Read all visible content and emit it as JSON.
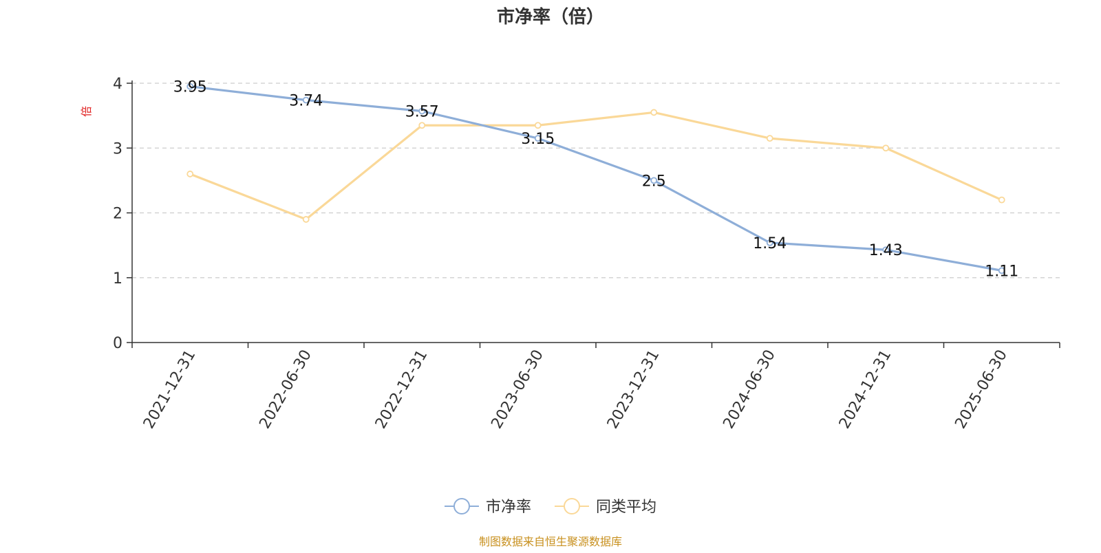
{
  "chart_data": {
    "type": "line",
    "title": "市净率（倍）",
    "ylabel": "倍",
    "ylim": [
      0,
      4
    ],
    "yticks": [
      0,
      1,
      2,
      3,
      4
    ],
    "grid": true,
    "legend_position": "bottom",
    "categories": [
      "2021-12-31",
      "2022-06-30",
      "2022-12-31",
      "2023-06-30",
      "2023-12-31",
      "2024-06-30",
      "2024-12-31",
      "2025-06-30"
    ],
    "series": [
      {
        "name": "市净率",
        "color": "#8eaed8",
        "values": [
          3.95,
          3.74,
          3.57,
          3.15,
          2.5,
          1.54,
          1.43,
          1.11
        ],
        "labels": [
          "3.95",
          "3.74",
          "3.57",
          "3.15",
          "2.5",
          "1.54",
          "1.43",
          "1.11"
        ]
      },
      {
        "name": "同类平均",
        "color": "#fad898",
        "values": [
          2.6,
          1.9,
          3.35,
          3.35,
          3.55,
          3.15,
          3.0,
          2.2
        ]
      }
    ],
    "source": "制图数据来自恒生聚源数据库"
  },
  "colors": {
    "ylabel": "#e02020",
    "source": "#c8901e",
    "axis": "#333333",
    "grid": "#cccccc"
  }
}
